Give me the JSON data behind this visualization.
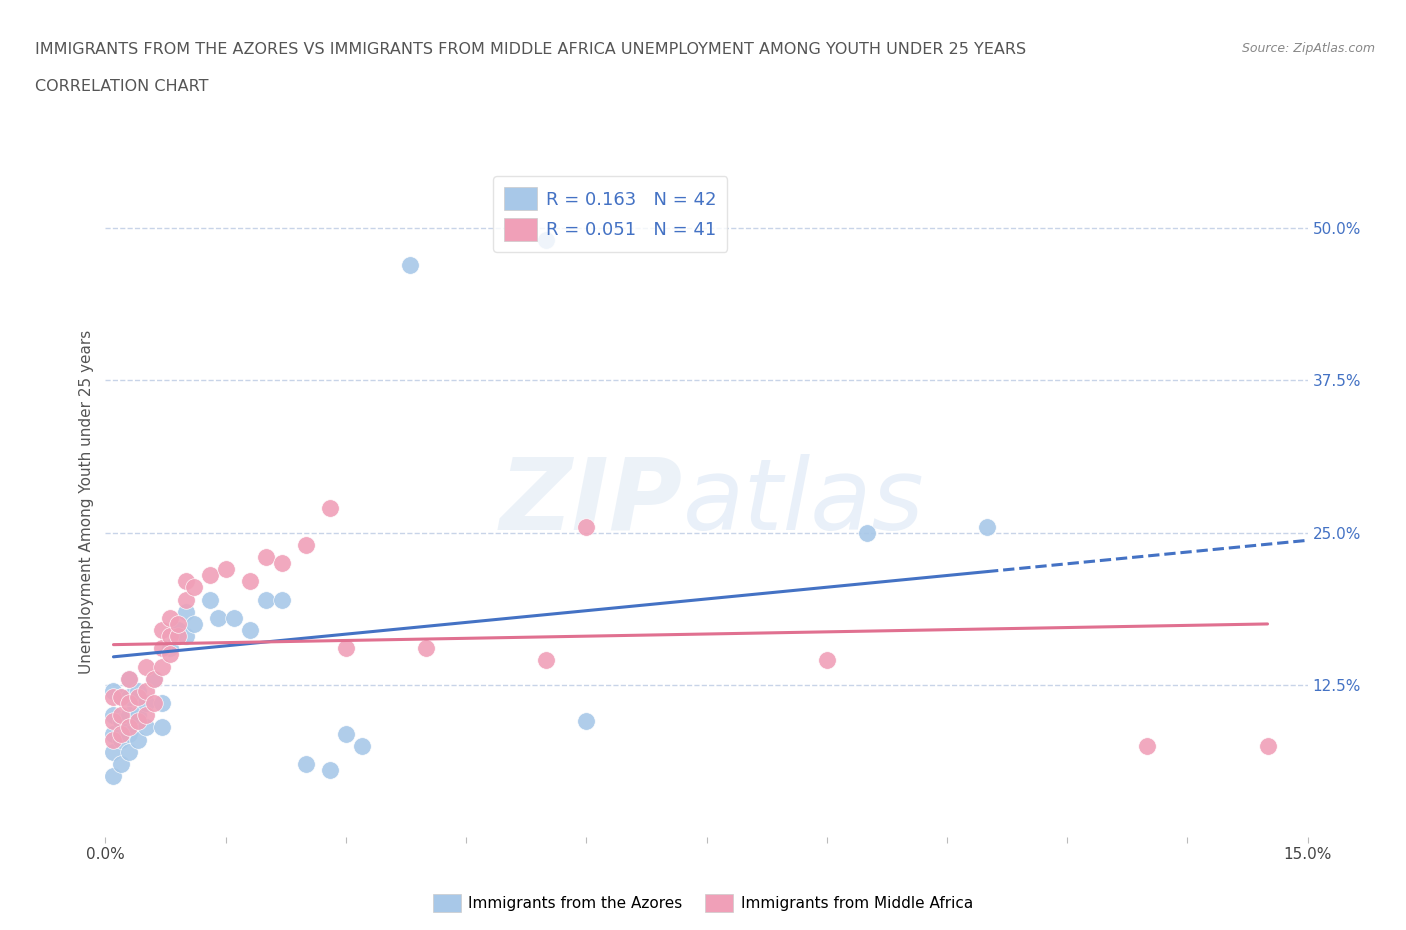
{
  "title_line1": "IMMIGRANTS FROM THE AZORES VS IMMIGRANTS FROM MIDDLE AFRICA UNEMPLOYMENT AMONG YOUTH UNDER 25 YEARS",
  "title_line2": "CORRELATION CHART",
  "source_text": "Source: ZipAtlas.com",
  "watermark_top": "ZIP",
  "watermark_bot": "atlas",
  "ylabel": "Unemployment Among Youth under 25 years",
  "xlim": [
    0.0,
    0.15
  ],
  "ylim": [
    0.0,
    0.55
  ],
  "xticks": [
    0.0,
    0.015,
    0.03,
    0.045,
    0.06,
    0.075,
    0.09,
    0.105,
    0.12,
    0.135,
    0.15
  ],
  "xticklabels": [
    "0.0%",
    "",
    "",
    "",
    "",
    "",
    "",
    "",
    "",
    "",
    "15.0%"
  ],
  "yticks_right": [
    0.125,
    0.25,
    0.375,
    0.5
  ],
  "yticklabels_right": [
    "12.5%",
    "25.0%",
    "37.5%",
    "50.0%"
  ],
  "azores_R": 0.163,
  "azores_N": 42,
  "africa_R": 0.051,
  "africa_N": 41,
  "color_azores": "#a8c8e8",
  "color_africa": "#f0a0b8",
  "color_trend_azores": "#4472c4",
  "color_trend_africa": "#e07090",
  "legend_label_azores": "Immigrants from the Azores",
  "legend_label_africa": "Immigrants from Middle Africa",
  "azores_x": [
    0.001,
    0.001,
    0.001,
    0.001,
    0.001,
    0.002,
    0.002,
    0.002,
    0.002,
    0.003,
    0.003,
    0.003,
    0.003,
    0.003,
    0.004,
    0.004,
    0.004,
    0.005,
    0.005,
    0.006,
    0.007,
    0.007,
    0.008,
    0.009,
    0.01,
    0.01,
    0.011,
    0.013,
    0.014,
    0.016,
    0.018,
    0.02,
    0.022,
    0.025,
    0.028,
    0.03,
    0.032,
    0.038,
    0.055,
    0.06,
    0.095,
    0.11
  ],
  "azores_y": [
    0.05,
    0.07,
    0.085,
    0.1,
    0.12,
    0.06,
    0.08,
    0.095,
    0.115,
    0.07,
    0.085,
    0.1,
    0.115,
    0.13,
    0.08,
    0.1,
    0.12,
    0.09,
    0.11,
    0.13,
    0.09,
    0.11,
    0.155,
    0.17,
    0.165,
    0.185,
    0.175,
    0.195,
    0.18,
    0.18,
    0.17,
    0.195,
    0.195,
    0.06,
    0.055,
    0.085,
    0.075,
    0.47,
    0.49,
    0.095,
    0.25,
    0.255
  ],
  "africa_x": [
    0.001,
    0.001,
    0.001,
    0.002,
    0.002,
    0.002,
    0.003,
    0.003,
    0.003,
    0.004,
    0.004,
    0.005,
    0.005,
    0.005,
    0.006,
    0.006,
    0.007,
    0.007,
    0.007,
    0.008,
    0.008,
    0.008,
    0.009,
    0.009,
    0.01,
    0.01,
    0.011,
    0.013,
    0.015,
    0.018,
    0.02,
    0.022,
    0.025,
    0.028,
    0.03,
    0.04,
    0.055,
    0.06,
    0.09,
    0.13,
    0.145
  ],
  "africa_y": [
    0.08,
    0.095,
    0.115,
    0.085,
    0.1,
    0.115,
    0.09,
    0.11,
    0.13,
    0.095,
    0.115,
    0.1,
    0.12,
    0.14,
    0.11,
    0.13,
    0.14,
    0.155,
    0.17,
    0.15,
    0.165,
    0.18,
    0.165,
    0.175,
    0.195,
    0.21,
    0.205,
    0.215,
    0.22,
    0.21,
    0.23,
    0.225,
    0.24,
    0.27,
    0.155,
    0.155,
    0.145,
    0.255,
    0.145,
    0.075,
    0.075
  ],
  "grid_color": "#c8d4e8",
  "bg_color": "#ffffff",
  "azores_trend_x0": 0.001,
  "azores_trend_x1": 0.11,
  "azores_trend_y0": 0.148,
  "azores_trend_y1": 0.218,
  "africa_trend_x0": 0.001,
  "africa_trend_x1": 0.145,
  "africa_trend_y0": 0.158,
  "africa_trend_y1": 0.175
}
